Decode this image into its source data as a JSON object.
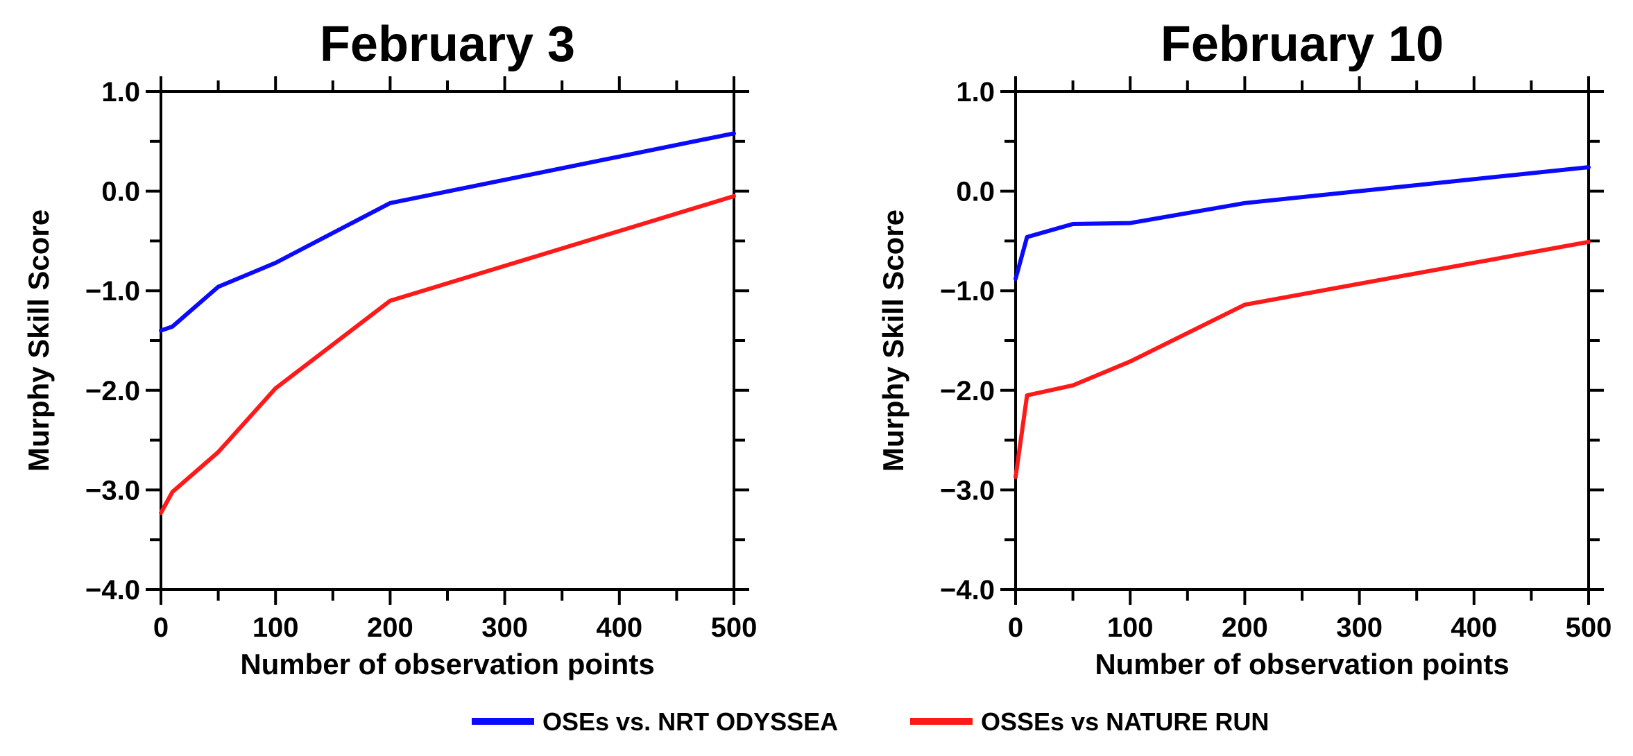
{
  "chart_data": [
    {
      "type": "line",
      "title": "February 3",
      "xlabel": "Number of observation points",
      "ylabel": "Murphy Skill Score",
      "xlim": [
        0,
        500
      ],
      "ylim": [
        -4.0,
        1.0
      ],
      "x_ticks": [
        0,
        100,
        200,
        300,
        400,
        500
      ],
      "x_tick_labels": [
        "0",
        "100",
        "200",
        "300",
        "400",
        "500"
      ],
      "y_ticks": [
        1.0,
        0.0,
        -1.0,
        -2.0,
        -3.0,
        -4.0
      ],
      "y_tick_labels": [
        "1.0",
        "0.0",
        "−1.0",
        "−2.0",
        "−3.0",
        "−4.0"
      ],
      "grid": false,
      "series": [
        {
          "name": "OSEs vs. NRT ODYSSEA",
          "color": "#0a0aff",
          "x": [
            0,
            10,
            50,
            100,
            200,
            500
          ],
          "y": [
            -1.4,
            -1.36,
            -0.96,
            -0.72,
            -0.12,
            0.58
          ]
        },
        {
          "name": "OSSEs vs NATURE RUN",
          "color": "#ff1a1a",
          "x": [
            0,
            10,
            50,
            100,
            200,
            500
          ],
          "y": [
            -3.23,
            -3.02,
            -2.62,
            -1.98,
            -1.1,
            -0.05
          ]
        }
      ]
    },
    {
      "type": "line",
      "title": "February 10",
      "xlabel": "Number of observation points",
      "ylabel": "Murphy Skill Score",
      "xlim": [
        0,
        500
      ],
      "ylim": [
        -4.0,
        1.0
      ],
      "x_ticks": [
        0,
        100,
        200,
        300,
        400,
        500
      ],
      "x_tick_labels": [
        "0",
        "100",
        "200",
        "300",
        "400",
        "500"
      ],
      "y_ticks": [
        1.0,
        0.0,
        -1.0,
        -2.0,
        -3.0,
        -4.0
      ],
      "y_tick_labels": [
        "1.0",
        "0.0",
        "−1.0",
        "−2.0",
        "−3.0",
        "−4.0"
      ],
      "grid": false,
      "series": [
        {
          "name": "OSEs vs. NRT ODYSSEA",
          "color": "#0a0aff",
          "x": [
            0,
            10,
            50,
            100,
            200,
            500
          ],
          "y": [
            -0.88,
            -0.46,
            -0.33,
            -0.32,
            -0.12,
            0.24
          ]
        },
        {
          "name": "OSSEs vs NATURE RUN",
          "color": "#ff1a1a",
          "x": [
            0,
            10,
            50,
            100,
            200,
            500
          ],
          "y": [
            -2.87,
            -2.05,
            -1.95,
            -1.71,
            -1.14,
            -0.51
          ]
        }
      ]
    }
  ],
  "legend": {
    "placement": "bottom-center",
    "items": [
      {
        "label": "OSEs vs. NRT ODYSSEA",
        "color": "#0a0aff"
      },
      {
        "label": "OSSEs vs NATURE RUN",
        "color": "#ff1a1a"
      }
    ]
  }
}
